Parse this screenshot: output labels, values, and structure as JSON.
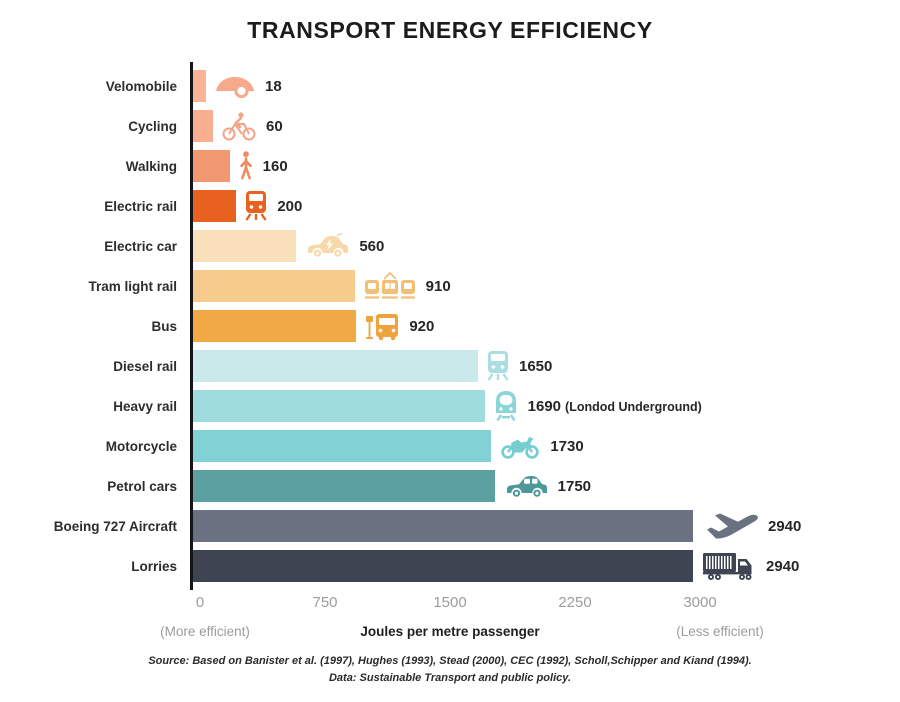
{
  "title": "TRANSPORT ENERGY EFFICIENCY",
  "chart_data": {
    "type": "bar",
    "orientation": "horizontal",
    "title": "TRANSPORT ENERGY EFFICIENCY",
    "xlabel": "Joules per metre passenger",
    "xlim": [
      0,
      3000
    ],
    "grid": false,
    "axis": {
      "ticks": [
        "0",
        "750",
        "1500",
        "2250",
        "3000"
      ],
      "left_note": "(More efficient)",
      "title": "Joules per metre passenger",
      "right_note": "(Less efficient)"
    },
    "rows": [
      {
        "label": "Velomobile",
        "value": 18,
        "bar_color": "#F9B397",
        "icon": "velomobile",
        "icon_color": "#F6A98B"
      },
      {
        "label": "Cycling",
        "value": 60,
        "bar_color": "#F8AF90",
        "icon": "bicycle",
        "icon_color": "#F5A486"
      },
      {
        "label": "Walking",
        "value": 160,
        "bar_color": "#F29871",
        "icon": "pedestrian",
        "icon_color": "#F08B60"
      },
      {
        "label": "Electric rail",
        "value": 200,
        "bar_color": "#E8611F",
        "icon": "train",
        "icon_color": "#E8611F"
      },
      {
        "label": "Electric car",
        "value": 560,
        "bar_color": "#FAE0BA",
        "icon": "electric-car",
        "icon_color": "#F8D8A8"
      },
      {
        "label": "Tram light rail",
        "value": 910,
        "bar_color": "#F6CB8B",
        "icon": "tram",
        "icon_color": "#F3BF75"
      },
      {
        "label": "Bus",
        "value": 920,
        "bar_color": "#F0A944",
        "icon": "bus",
        "icon_color": "#EFA33C"
      },
      {
        "label": "Diesel rail",
        "value": 1650,
        "bar_color": "#C9E9EA",
        "icon": "train",
        "icon_color": "#AADFE2"
      },
      {
        "label": "Heavy rail",
        "value": 1690,
        "note": "(Londod Underground)",
        "bar_color": "#9EDCDE",
        "icon": "metro",
        "icon_color": "#8CD5D8"
      },
      {
        "label": "Motorcycle",
        "value": 1730,
        "bar_color": "#80D2D5",
        "icon": "motorcycle",
        "icon_color": "#74CED2"
      },
      {
        "label": "Petrol cars",
        "value": 1750,
        "bar_color": "#5CA0A2",
        "icon": "car",
        "icon_color": "#4F989A"
      },
      {
        "label": "Boeing 727 Aircraft",
        "value": 2940,
        "bar_color": "#6A7180",
        "icon": "airplane",
        "icon_color": "#6A7180"
      },
      {
        "label": "Lorries",
        "value": 2940,
        "bar_color": "#3E4452",
        "icon": "lorry",
        "icon_color": "#3E4452"
      }
    ]
  },
  "source": {
    "line1": "Source: Based on Banister et al. (1997), Hughes (1993), Stead (2000), CEC (1992), Scholl,Schipper and Kiand (1994).",
    "line2": "Data: Sustainable Transport and public policy."
  }
}
